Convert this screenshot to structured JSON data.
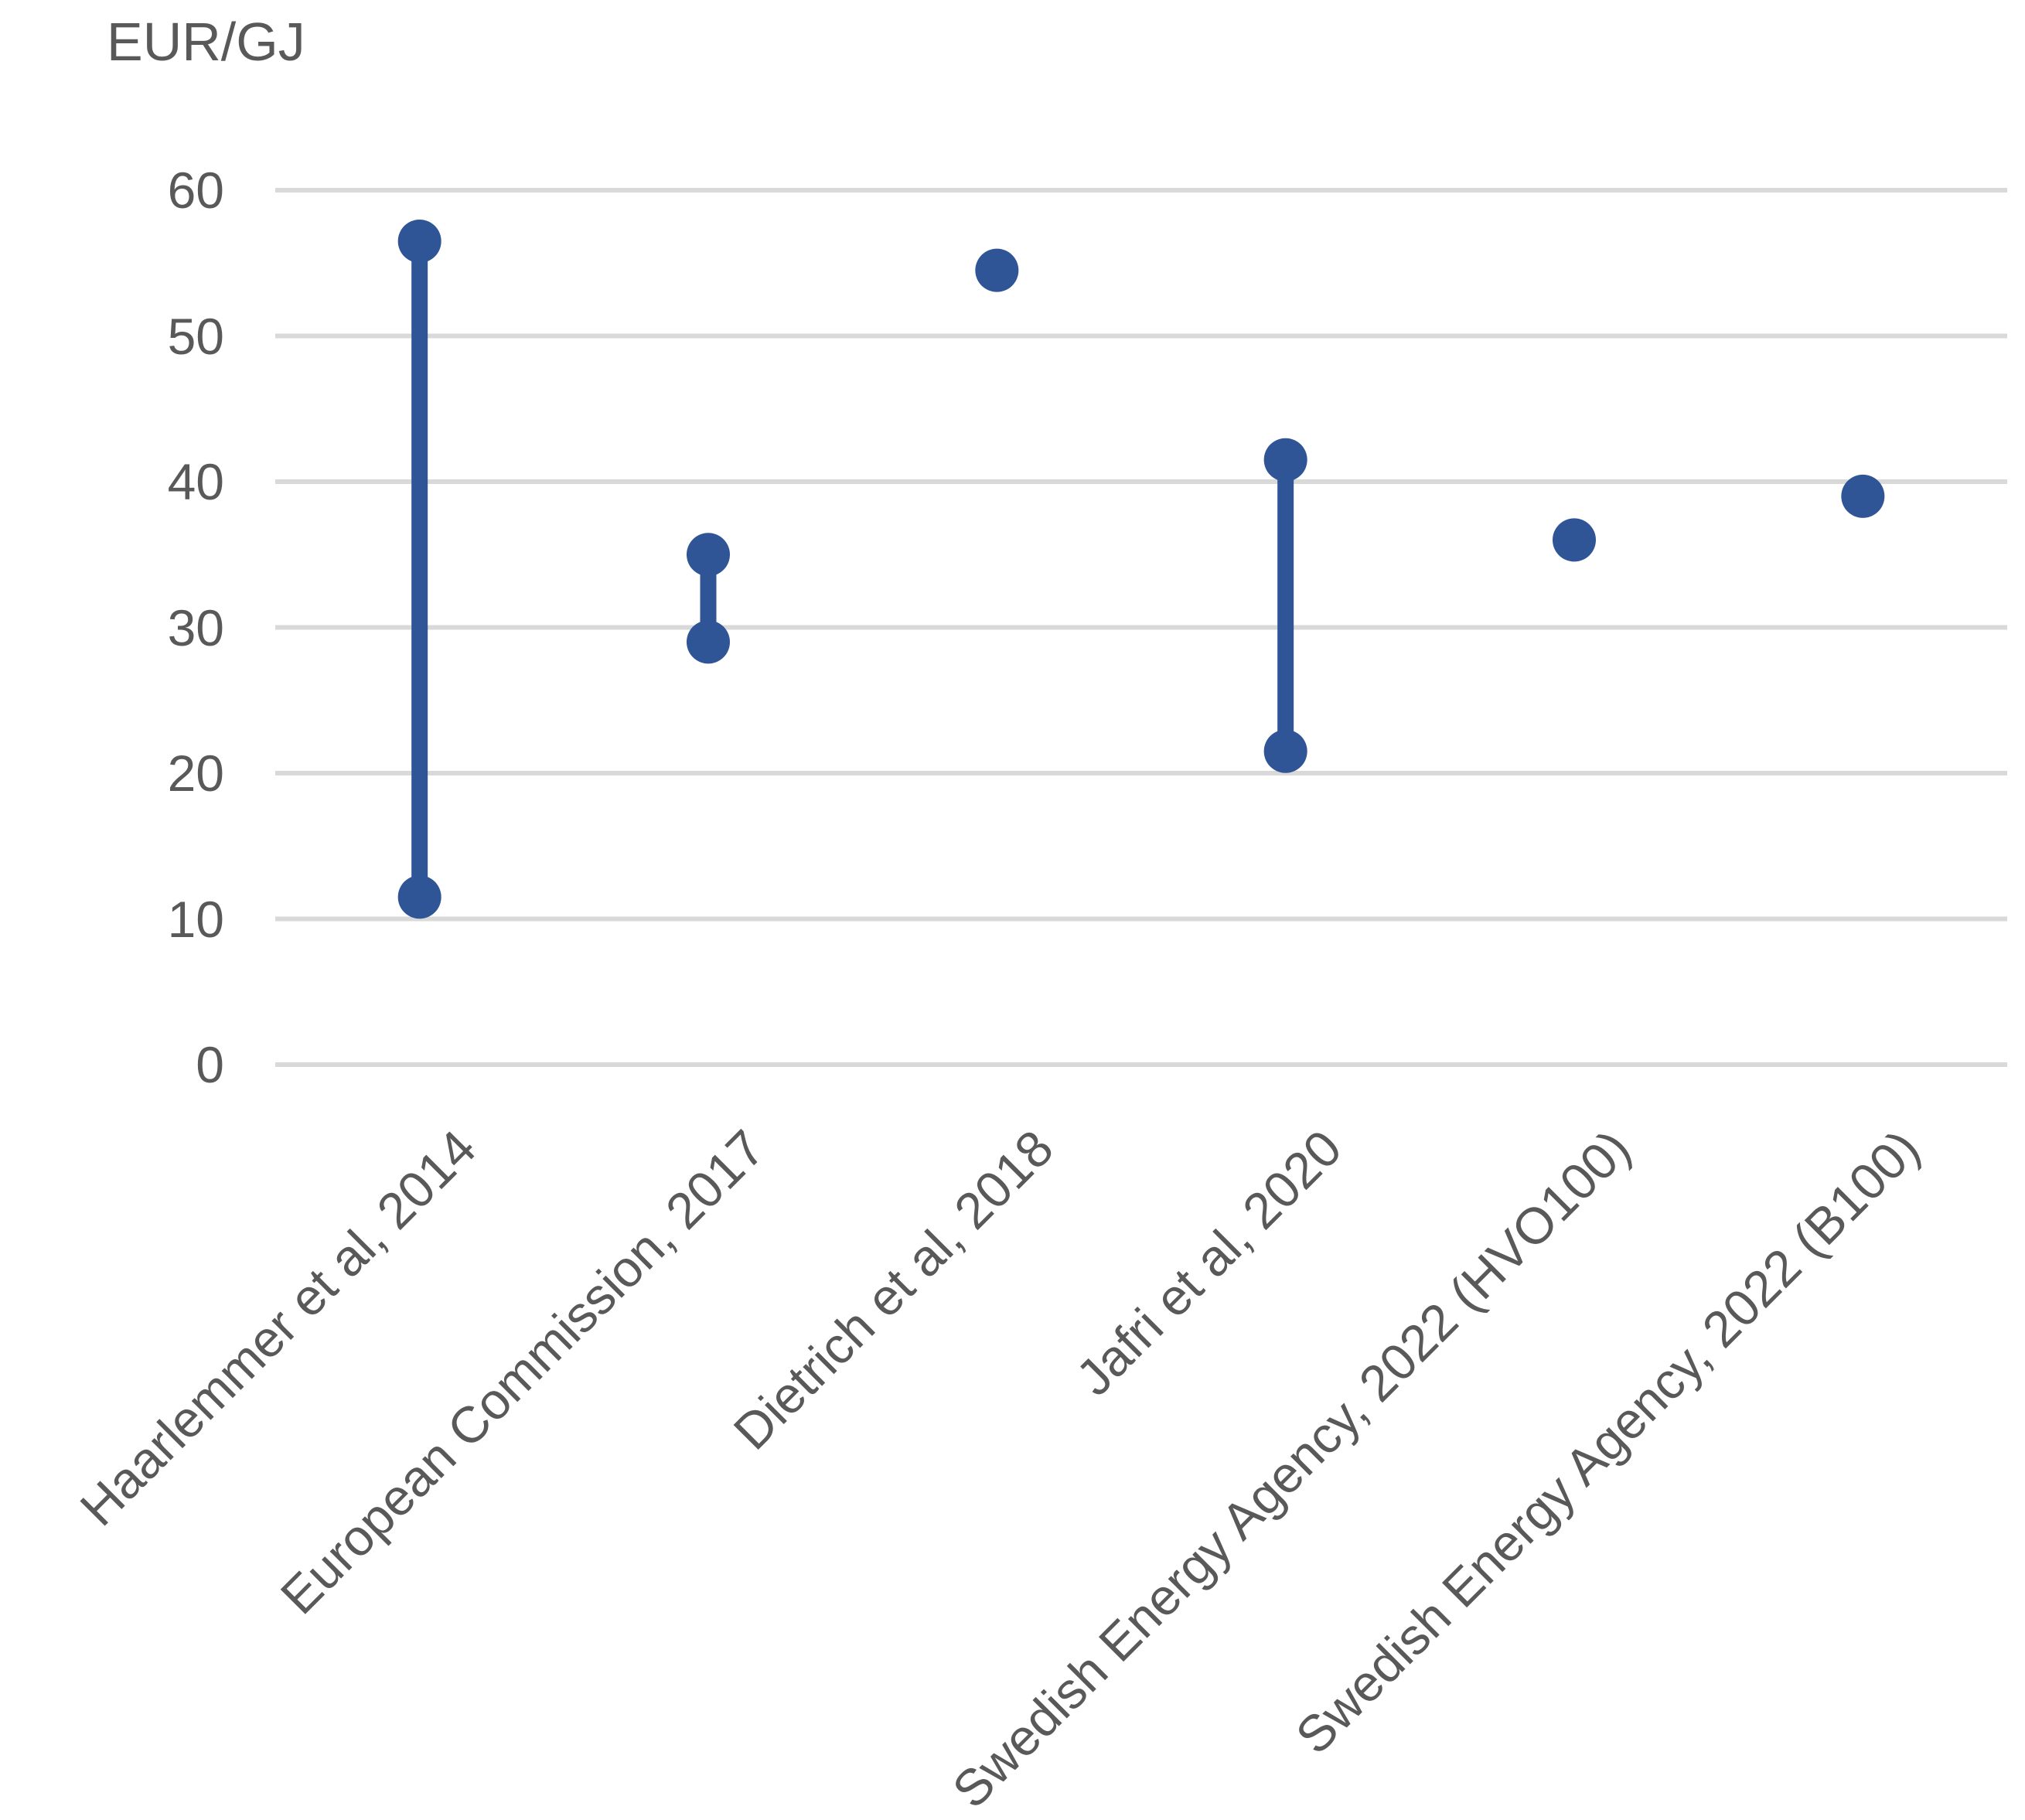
{
  "chart_data": {
    "type": "scatter",
    "subtype": "dumbbell-range",
    "title": "",
    "axis_title": "EUR/GJ",
    "xlabel": "",
    "ylabel": "EUR/GJ",
    "categories": [
      "Haarlemmer et al, 2014",
      "European Commission, 2017",
      "Dietrich et al, 2018",
      "Jafri et al, 2020",
      "Swedish Energy Agency, 2022 (HVO100)",
      "Swedish Energy Agency, 2022 (B100)"
    ],
    "points": [
      {
        "category": "Haarlemmer et al, 2014",
        "min": 11.5,
        "max": 56.5
      },
      {
        "category": "European Commission, 2017",
        "min": 29,
        "max": 35
      },
      {
        "category": "Dietrich et al, 2018",
        "min": 54.5,
        "max": 54.5
      },
      {
        "category": "Jafri et al, 2020",
        "min": 21.5,
        "max": 41.5
      },
      {
        "category": "Swedish Energy Agency, 2022 (HVO100)",
        "min": 36,
        "max": 36
      },
      {
        "category": "Swedish Energy Agency, 2022 (B100)",
        "min": 39,
        "max": 39
      }
    ],
    "yticks": [
      0,
      10,
      20,
      30,
      40,
      50,
      60
    ],
    "ylim": [
      0,
      62
    ],
    "grid": true,
    "legend": "none",
    "marker_color": "#2F5597",
    "gridline_color": "#D9D9D9",
    "text_color": "#595959"
  }
}
